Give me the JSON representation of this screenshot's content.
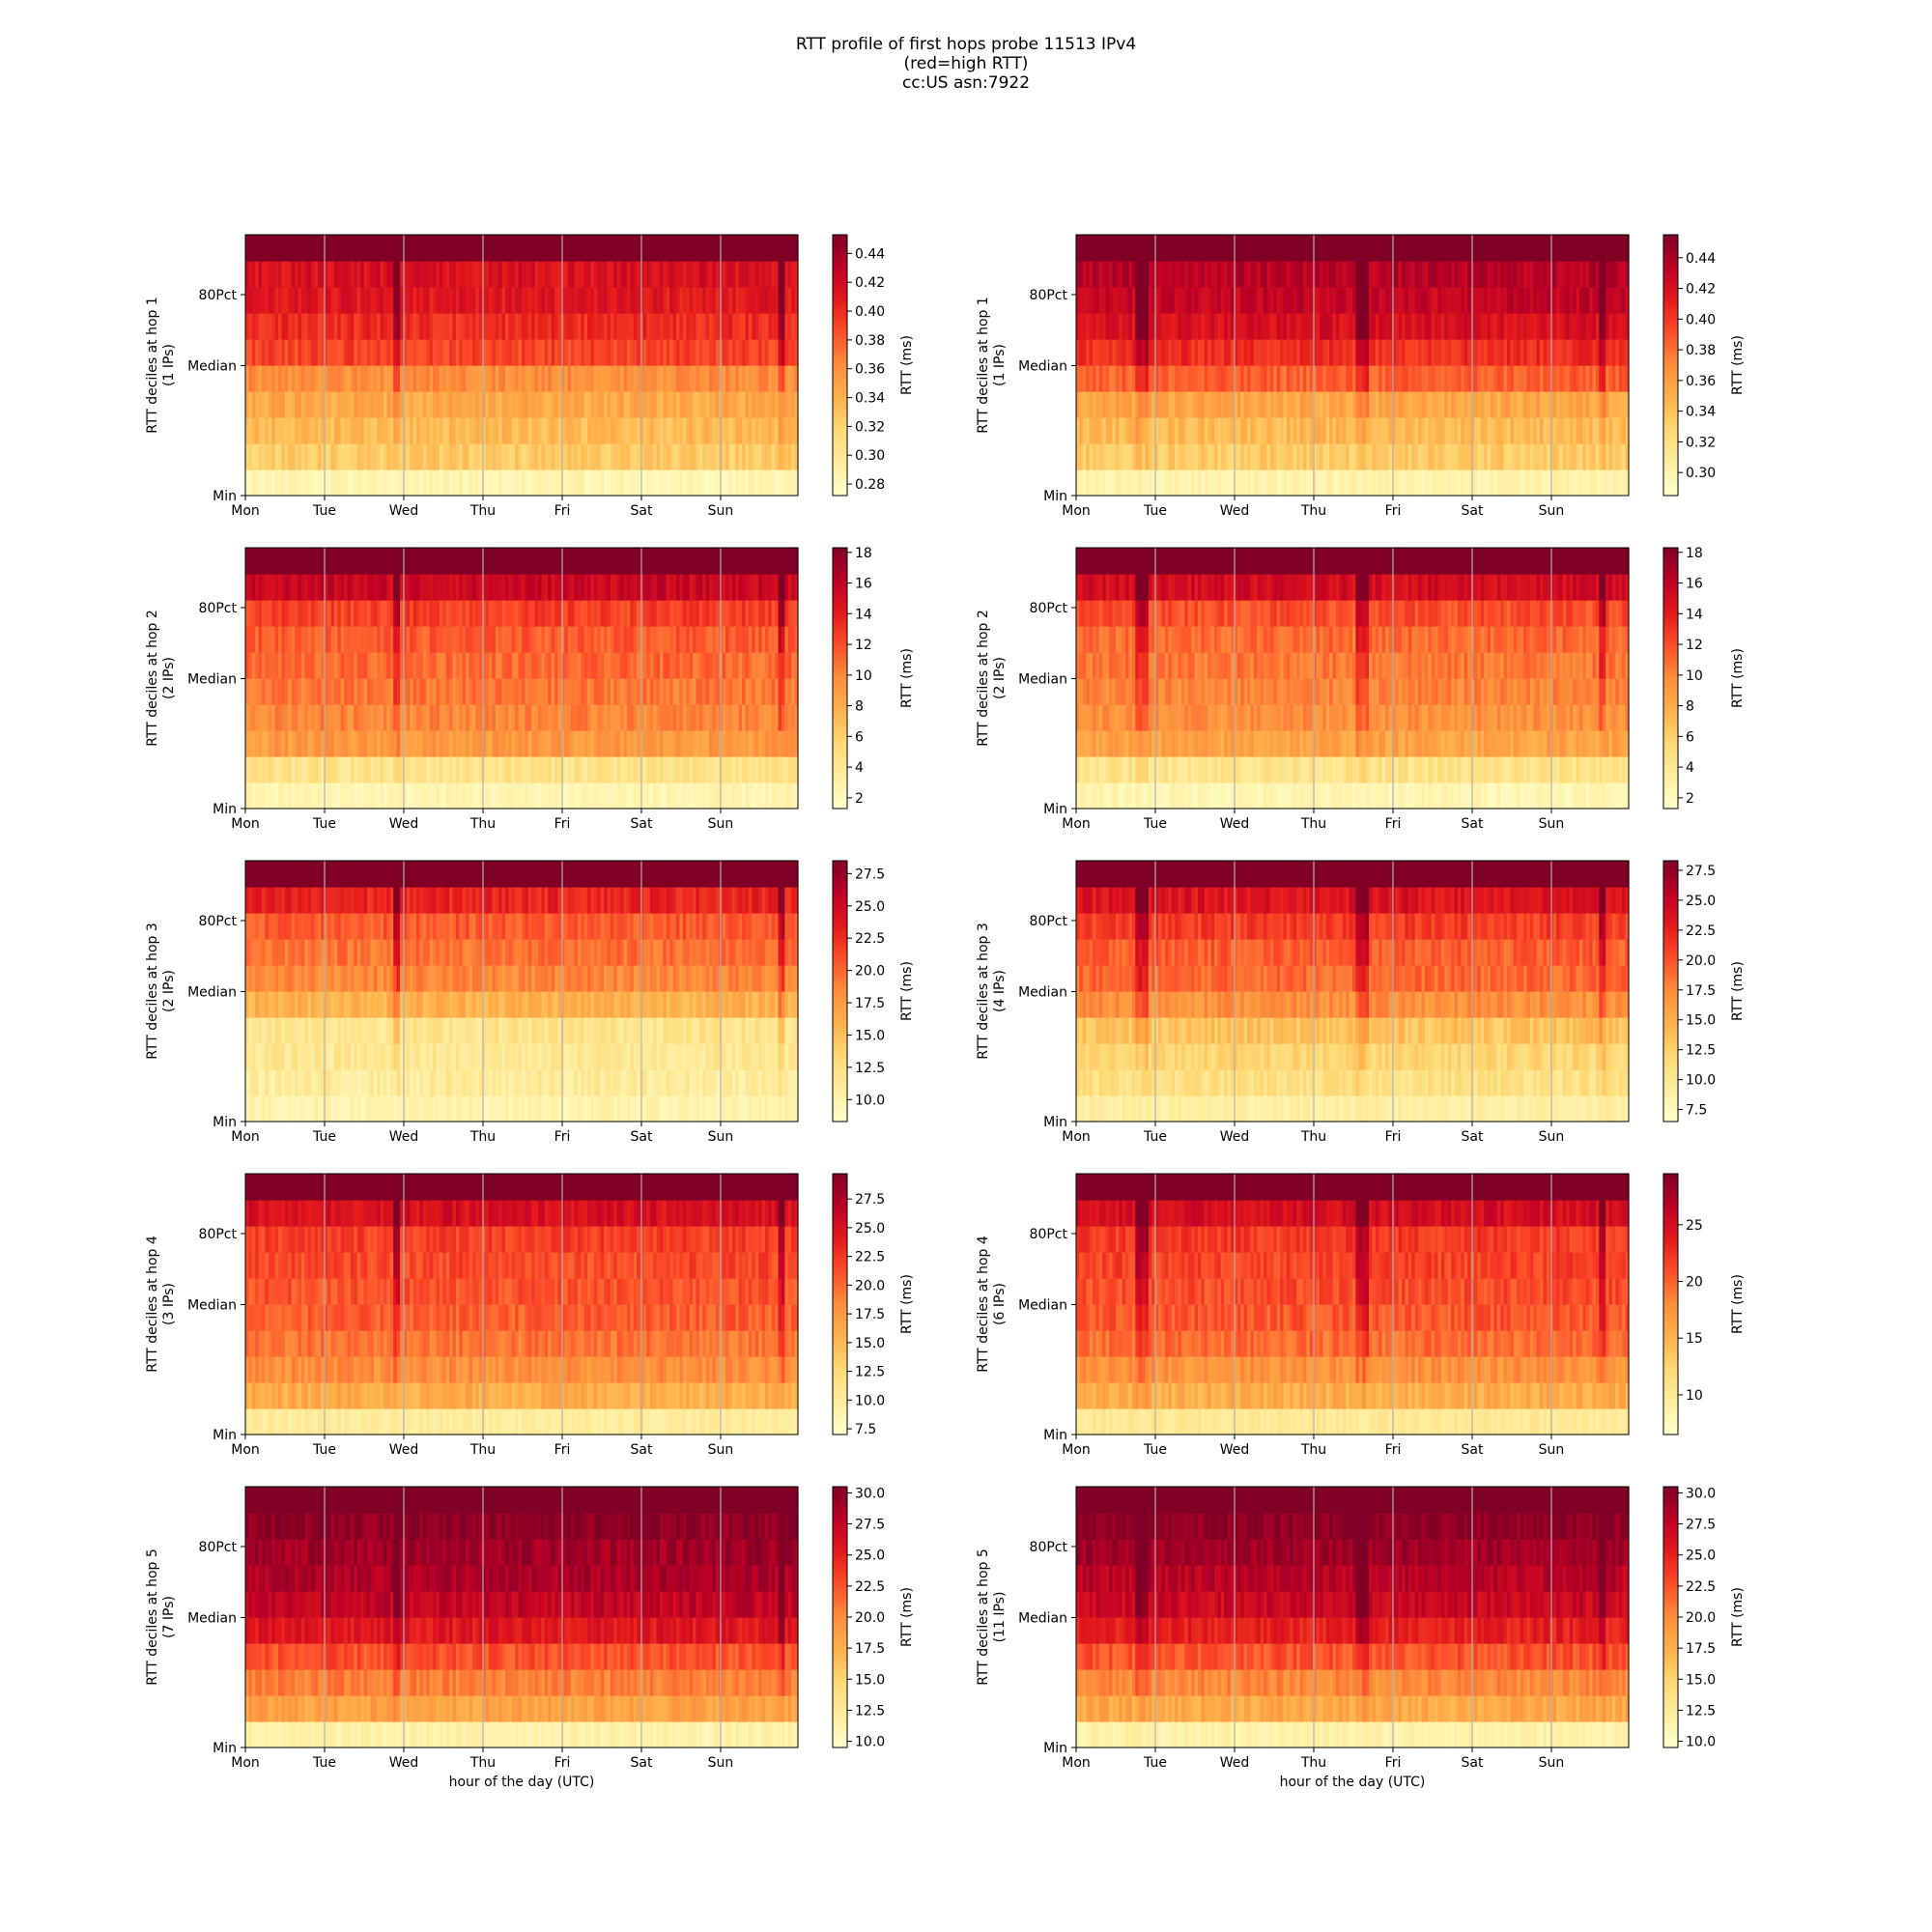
{
  "figure": {
    "title_lines": [
      "RTT profile of first hops probe 11513 IPv4",
      "(red=high RTT)",
      "cc:US asn:7922"
    ]
  },
  "chart_data": {
    "type": "heatmap",
    "colormap": "YlOrRd",
    "x_tick_labels": [
      "Mon",
      "Tue",
      "Wed",
      "Thu",
      "Fri",
      "Sat",
      "Sun"
    ],
    "x_day_count": 7,
    "xlabel": "hour of the day (UTC)",
    "y_tick_labels": [
      "Min",
      "Median",
      "80Pct"
    ],
    "deciles": [
      0,
      10,
      20,
      30,
      40,
      50,
      60,
      70,
      80,
      90,
      100
    ],
    "colorbar_label": "RTT (ms)",
    "panels": [
      {
        "hop": 1,
        "ylabel": "RTT deciles at hop 1",
        "ips_label": "(1 IPs)",
        "vmin": 0.272,
        "vmax": 0.453,
        "ticks": [
          "0.28",
          "0.30",
          "0.32",
          "0.34",
          "0.36",
          "0.38",
          "0.40",
          "0.42",
          "0.44"
        ],
        "tick_values": [
          0.28,
          0.3,
          0.32,
          0.34,
          0.36,
          0.38,
          0.4,
          0.42,
          0.44
        ],
        "decile_rtt": [
          0.285,
          0.325,
          0.335,
          0.345,
          0.36,
          0.39,
          0.4,
          0.41,
          0.415,
          0.46
        ]
      },
      {
        "hop": 1,
        "ylabel": "RTT deciles at hop 1",
        "ips_label": "(1 IPs)",
        "vmin": 0.285,
        "vmax": 0.455,
        "ticks": [
          "0.30",
          "0.32",
          "0.34",
          "0.36",
          "0.38",
          "0.40",
          "0.42",
          "0.44"
        ],
        "tick_values": [
          0.3,
          0.32,
          0.34,
          0.36,
          0.38,
          0.4,
          0.42,
          0.44
        ],
        "decile_rtt": [
          0.3,
          0.335,
          0.345,
          0.355,
          0.385,
          0.405,
          0.42,
          0.43,
          0.435,
          0.46
        ]
      },
      {
        "hop": 2,
        "ylabel": "RTT deciles at hop 2",
        "ips_label": "(2 IPs)",
        "vmin": 1.3,
        "vmax": 18.3,
        "ticks": [
          "2",
          "4",
          "6",
          "8",
          "10",
          "12",
          "14",
          "16",
          "18"
        ],
        "tick_values": [
          2,
          4,
          6,
          8,
          10,
          12,
          14,
          16,
          18
        ],
        "decile_rtt": [
          2.5,
          4.5,
          9.0,
          10.0,
          10.5,
          11.0,
          11.5,
          12.5,
          15.5,
          19.0
        ]
      },
      {
        "hop": 2,
        "ylabel": "RTT deciles at hop 2",
        "ips_label": "(2 IPs)",
        "vmin": 1.3,
        "vmax": 18.3,
        "ticks": [
          "2",
          "4",
          "6",
          "8",
          "10",
          "12",
          "14",
          "16",
          "18"
        ],
        "tick_values": [
          2,
          4,
          6,
          8,
          10,
          12,
          14,
          16,
          18
        ],
        "decile_rtt": [
          2.5,
          4.5,
          8.5,
          9.5,
          10.0,
          10.5,
          11.0,
          12.0,
          15.0,
          19.0
        ]
      },
      {
        "hop": 3,
        "ylabel": "RTT deciles at hop 3",
        "ips_label": "(2 IPs)",
        "vmin": 8.3,
        "vmax": 28.5,
        "ticks": [
          "10.0",
          "12.5",
          "15.0",
          "17.5",
          "20.0",
          "22.5",
          "25.0",
          "27.5"
        ],
        "tick_values": [
          10.0,
          12.5,
          15.0,
          17.5,
          20.0,
          22.5,
          25.0,
          27.5
        ],
        "decile_rtt": [
          10.0,
          11.0,
          11.5,
          12.0,
          16.0,
          18.5,
          19.5,
          20.5,
          23.0,
          29.0
        ]
      },
      {
        "hop": 3,
        "ylabel": "RTT deciles at hop 3",
        "ips_label": "(4 IPs)",
        "vmin": 6.5,
        "vmax": 28.3,
        "ticks": [
          "7.5",
          "10.0",
          "12.5",
          "15.0",
          "17.5",
          "20.0",
          "22.5",
          "25.0",
          "27.5"
        ],
        "tick_values": [
          7.5,
          10.0,
          12.5,
          15.0,
          17.5,
          20.0,
          22.5,
          25.0,
          27.5
        ],
        "decile_rtt": [
          9.0,
          11.0,
          12.0,
          13.5,
          17.0,
          19.0,
          19.5,
          21.0,
          23.5,
          29.0
        ]
      },
      {
        "hop": 4,
        "ylabel": "RTT deciles at hop 4",
        "ips_label": "(3 IPs)",
        "vmin": 7.0,
        "vmax": 29.7,
        "ticks": [
          "7.5",
          "10.0",
          "12.5",
          "15.0",
          "17.5",
          "20.0",
          "22.5",
          "25.0",
          "27.5"
        ],
        "tick_values": [
          7.5,
          10.0,
          12.5,
          15.0,
          17.5,
          20.0,
          22.5,
          25.0,
          27.5
        ],
        "decile_rtt": [
          10.0,
          16.0,
          18.0,
          19.5,
          20.5,
          21.0,
          21.5,
          22.0,
          25.0,
          31.0
        ]
      },
      {
        "hop": 4,
        "ylabel": "RTT deciles at hop 4",
        "ips_label": "(6 IPs)",
        "vmin": 6.5,
        "vmax": 29.5,
        "ticks": [
          "10",
          "15",
          "20",
          "25"
        ],
        "tick_values": [
          10,
          15,
          20,
          25
        ],
        "decile_rtt": [
          10.0,
          15.5,
          17.5,
          19.5,
          20.5,
          21.0,
          21.5,
          22.0,
          25.0,
          31.0
        ]
      },
      {
        "hop": 5,
        "ylabel": "RTT deciles at hop 5",
        "ips_label": "(7 IPs)",
        "vmin": 9.5,
        "vmax": 30.5,
        "ticks": [
          "10.0",
          "12.5",
          "15.0",
          "17.5",
          "20.0",
          "22.5",
          "25.0",
          "27.5",
          "30.0"
        ],
        "tick_values": [
          10.0,
          12.5,
          15.0,
          17.5,
          20.0,
          22.5,
          25.0,
          27.5,
          30.0
        ],
        "decile_rtt": [
          11.5,
          18.5,
          20.5,
          22.5,
          25.5,
          27.5,
          28.5,
          29.0,
          30.0,
          31.0
        ]
      },
      {
        "hop": 5,
        "ylabel": "RTT deciles at hop 5",
        "ips_label": "(11 IPs)",
        "vmin": 9.5,
        "vmax": 30.5,
        "ticks": [
          "10.0",
          "12.5",
          "15.0",
          "17.5",
          "20.0",
          "22.5",
          "25.0",
          "27.5",
          "30.0"
        ],
        "tick_values": [
          10.0,
          12.5,
          15.0,
          17.5,
          20.0,
          22.5,
          25.0,
          27.5,
          30.0
        ],
        "decile_rtt": [
          11.5,
          18.0,
          20.0,
          22.5,
          25.0,
          27.0,
          28.0,
          29.0,
          30.0,
          31.0
        ]
      }
    ]
  }
}
